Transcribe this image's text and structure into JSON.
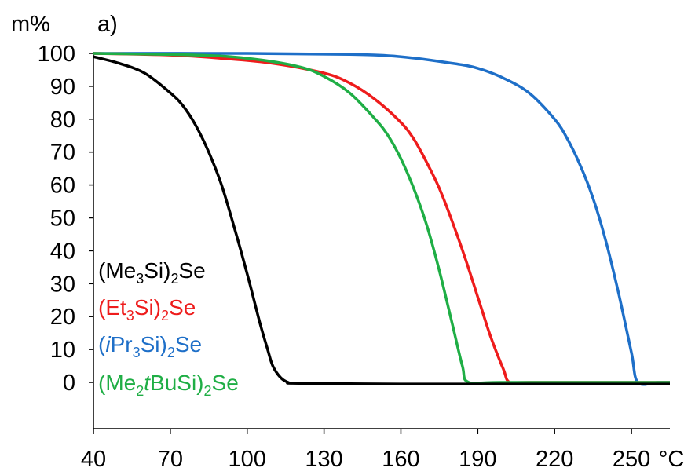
{
  "chart_data": {
    "type": "line",
    "panel_label": "a)",
    "ylabel": "m%",
    "xlabel": "",
    "x_unit": "°C",
    "xlim": [
      40,
      265
    ],
    "ylim": [
      0,
      100
    ],
    "x_ticks": [
      40,
      70,
      100,
      130,
      160,
      190,
      220,
      250
    ],
    "y_ticks": [
      0,
      10,
      20,
      30,
      40,
      50,
      60,
      70,
      80,
      90,
      100
    ],
    "grid": false,
    "legend_position": "bottom-left",
    "series": [
      {
        "name": "(Me3Si)2Se",
        "label_parts": [
          "(Me",
          "3",
          "Si)",
          "2",
          "Se"
        ],
        "color": "#000000",
        "x": [
          40,
          50,
          60,
          70,
          75,
          80,
          85,
          90,
          95,
          100,
          105,
          108,
          110,
          113,
          116,
          120,
          160,
          200,
          265
        ],
        "y": [
          99,
          97,
          94,
          88,
          84,
          78,
          70,
          60,
          47,
          33,
          18,
          10,
          5,
          1.5,
          0,
          -0.3,
          -0.5,
          -0.5,
          -0.5
        ]
      },
      {
        "name": "(Et3Si)2Se",
        "label_parts": [
          "(Et",
          "3",
          "Si)",
          "2",
          "Se"
        ],
        "color": "#ee1c1c",
        "x": [
          40,
          70,
          90,
          110,
          130,
          140,
          150,
          160,
          165,
          170,
          175,
          180,
          185,
          190,
          195,
          200,
          202.5,
          210,
          265
        ],
        "y": [
          100,
          99.5,
          98.5,
          97,
          94,
          91,
          86,
          79,
          74,
          67,
          59,
          49,
          38,
          26,
          14,
          4,
          0,
          0,
          0
        ]
      },
      {
        "name": "(iPr3Si)2Se",
        "label_parts": [
          "(",
          "i",
          "Pr",
          "3",
          "Si)",
          "2",
          "Se"
        ],
        "color": "#1e6fc8",
        "x": [
          40,
          100,
          140,
          160,
          180,
          190,
          200,
          210,
          220,
          225,
          230,
          235,
          240,
          245,
          250,
          252.5,
          260,
          265
        ],
        "y": [
          100,
          100,
          99.7,
          99,
          97,
          95.5,
          92.5,
          88,
          80,
          74,
          66,
          56,
          43,
          27,
          9,
          0,
          0,
          0
        ]
      },
      {
        "name": "(Me2tBuSi)2Se",
        "label_parts": [
          "(Me",
          "2",
          "t",
          "BuSi)",
          "2",
          "Se"
        ],
        "color": "#1fae45",
        "x": [
          40,
          80,
          100,
          120,
          130,
          140,
          150,
          155,
          160,
          165,
          170,
          175,
          180,
          184,
          186.5,
          200,
          265
        ],
        "y": [
          100,
          99.5,
          98.5,
          96,
          93,
          88,
          80,
          75,
          68,
          59,
          48,
          34,
          18,
          5,
          0,
          0,
          0
        ]
      }
    ]
  }
}
